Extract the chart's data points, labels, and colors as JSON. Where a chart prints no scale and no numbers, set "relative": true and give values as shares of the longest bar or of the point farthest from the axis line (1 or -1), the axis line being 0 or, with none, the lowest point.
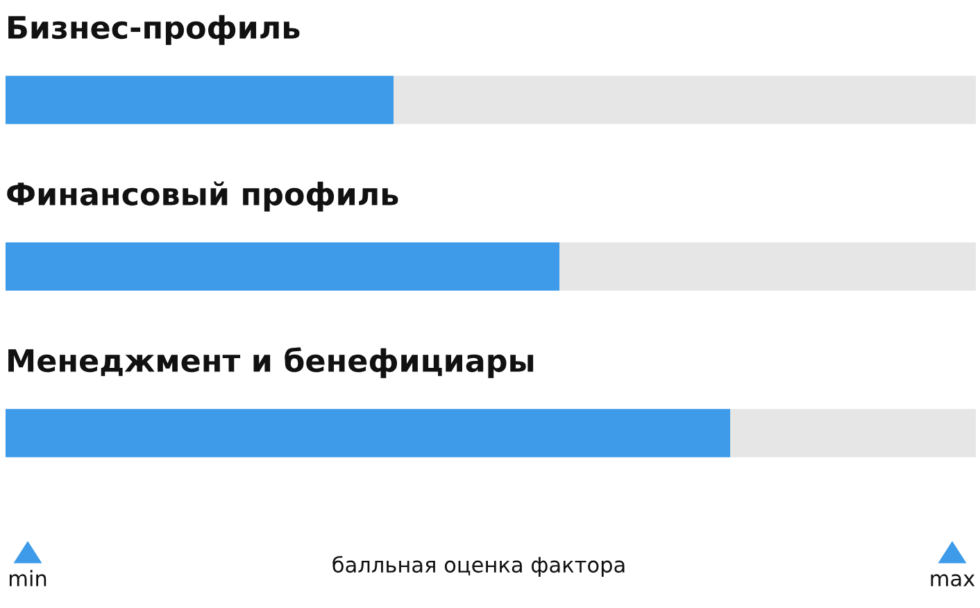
{
  "chart_data": {
    "type": "bar",
    "orientation": "horizontal",
    "stacked": true,
    "relative": true,
    "categories": [
      "Бизнес-профиль",
      "Финансовый профиль",
      "Менеджмент и бенефициары"
    ],
    "series": [
      {
        "color": "#3d9be9",
        "values": [
          0.4,
          0.571,
          0.747
        ]
      },
      {
        "color": "#e6e6e6",
        "values": [
          0.6,
          0.429,
          0.253
        ]
      }
    ],
    "annotations": [
      "min",
      "балльная оценка фактора",
      "max"
    ]
  }
}
